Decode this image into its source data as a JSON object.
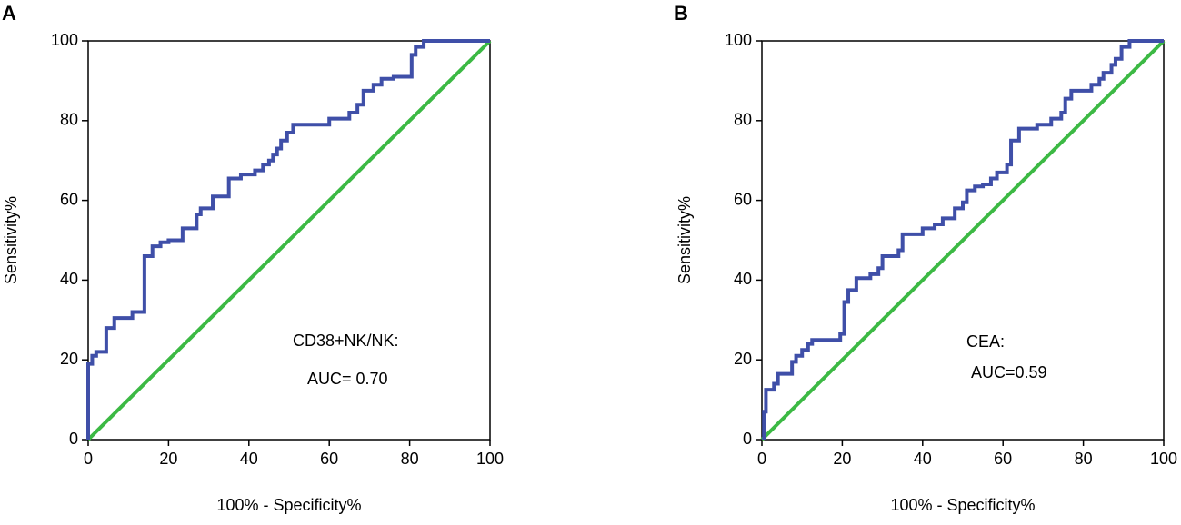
{
  "chart_data": [
    {
      "type": "line",
      "panel_label": "A",
      "xlabel": "100% - Specificity%",
      "ylabel": "Sensitivity%",
      "annotations": [
        "CD38+NK/NK:",
        "AUC= 0.70"
      ],
      "xlim": [
        0,
        100
      ],
      "ylim": [
        0,
        100
      ],
      "xticks": [
        0,
        20,
        40,
        60,
        80,
        100
      ],
      "yticks": [
        0,
        20,
        40,
        60,
        80,
        100
      ],
      "series": [
        {
          "color": "#3f4fa8",
          "x": [
            0,
            0,
            1,
            1,
            2,
            2,
            4.5,
            4.5,
            6.5,
            6.5,
            11,
            11,
            14,
            14,
            16,
            16,
            18,
            18,
            20,
            20,
            23.5,
            23.5,
            27,
            27,
            28,
            28,
            31,
            31,
            35,
            35,
            38,
            38,
            41.5,
            41.5,
            43.5,
            43.5,
            45,
            45,
            46,
            46,
            47,
            47,
            48,
            48,
            49.5,
            49.5,
            51,
            51,
            60,
            60,
            65,
            65,
            67,
            67,
            68.5,
            68.5,
            71,
            71,
            73,
            73,
            76,
            76,
            80.5,
            80.5,
            81.5,
            81.5,
            83.5,
            83.5,
            100
          ],
          "values": [
            0,
            19,
            19,
            21,
            21,
            22,
            22,
            28,
            28,
            30.5,
            30.5,
            32,
            32,
            46,
            46,
            48.5,
            48.5,
            49.5,
            49.5,
            50,
            50,
            53,
            53,
            56.5,
            56.5,
            58,
            58,
            61,
            61,
            65.5,
            65.5,
            66.5,
            66.5,
            67.5,
            67.5,
            69,
            69,
            70,
            70,
            71.5,
            71.5,
            73,
            73,
            75,
            75,
            77,
            77,
            79,
            79,
            80.5,
            80.5,
            82,
            82,
            84,
            84,
            87.5,
            87.5,
            89,
            89,
            90.5,
            90.5,
            91,
            91,
            96.5,
            96.5,
            98.5,
            98.5,
            100,
            100
          ]
        },
        {
          "color": "#3cb944",
          "x": [
            0,
            100
          ],
          "values": [
            0,
            100
          ]
        }
      ]
    },
    {
      "type": "line",
      "panel_label": "B",
      "xlabel": "100% - Specificity%",
      "ylabel": "Sensitivity%",
      "annotations": [
        "CEA:",
        "AUC=0.59"
      ],
      "xlim": [
        0,
        100
      ],
      "ylim": [
        0,
        100
      ],
      "xticks": [
        0,
        20,
        40,
        60,
        80,
        100
      ],
      "yticks": [
        0,
        20,
        40,
        60,
        80,
        100
      ],
      "series": [
        {
          "color": "#3f4fa8",
          "x": [
            0.5,
            0.5,
            1,
            1,
            3,
            3,
            4,
            4,
            7.5,
            7.5,
            8.5,
            8.5,
            10,
            10,
            11.5,
            11.5,
            12.5,
            12.5,
            19.5,
            19.5,
            20.5,
            20.5,
            21.5,
            21.5,
            23.5,
            23.5,
            27,
            27,
            29,
            29,
            30,
            30,
            34,
            34,
            35,
            35,
            40,
            40,
            43,
            43,
            45,
            45,
            48,
            48,
            50,
            50,
            51,
            51,
            53,
            53,
            55,
            55,
            57,
            57,
            58.5,
            58.5,
            61,
            61,
            62,
            62,
            64,
            64,
            68.5,
            68.5,
            72,
            72,
            74.5,
            74.5,
            75.5,
            75.5,
            77,
            77,
            82,
            82,
            84,
            84,
            85,
            85,
            87,
            87,
            88,
            88,
            89.5,
            89.5,
            91.5,
            91.5,
            100
          ],
          "values": [
            0,
            7,
            7,
            12.5,
            12.5,
            14,
            14,
            16.5,
            16.5,
            19.5,
            19.5,
            21,
            21,
            22.5,
            22.5,
            24,
            24,
            25,
            25,
            26.5,
            26.5,
            34.5,
            34.5,
            37.5,
            37.5,
            40.5,
            40.5,
            41.5,
            41.5,
            43,
            43,
            46,
            46,
            47.5,
            47.5,
            51.5,
            51.5,
            53,
            53,
            54,
            54,
            55.5,
            55.5,
            58,
            58,
            59.5,
            59.5,
            62.5,
            62.5,
            63.5,
            63.5,
            64,
            64,
            65.5,
            65.5,
            67,
            67,
            69,
            69,
            75,
            75,
            78,
            78,
            79,
            79,
            80.5,
            80.5,
            82,
            82,
            85.5,
            85.5,
            87.5,
            87.5,
            89,
            89,
            90.5,
            90.5,
            92,
            92,
            94,
            94,
            95.5,
            95.5,
            98.5,
            98.5,
            100,
            100
          ]
        },
        {
          "color": "#3cb944",
          "x": [
            0,
            100
          ],
          "values": [
            0,
            100
          ]
        }
      ]
    }
  ]
}
